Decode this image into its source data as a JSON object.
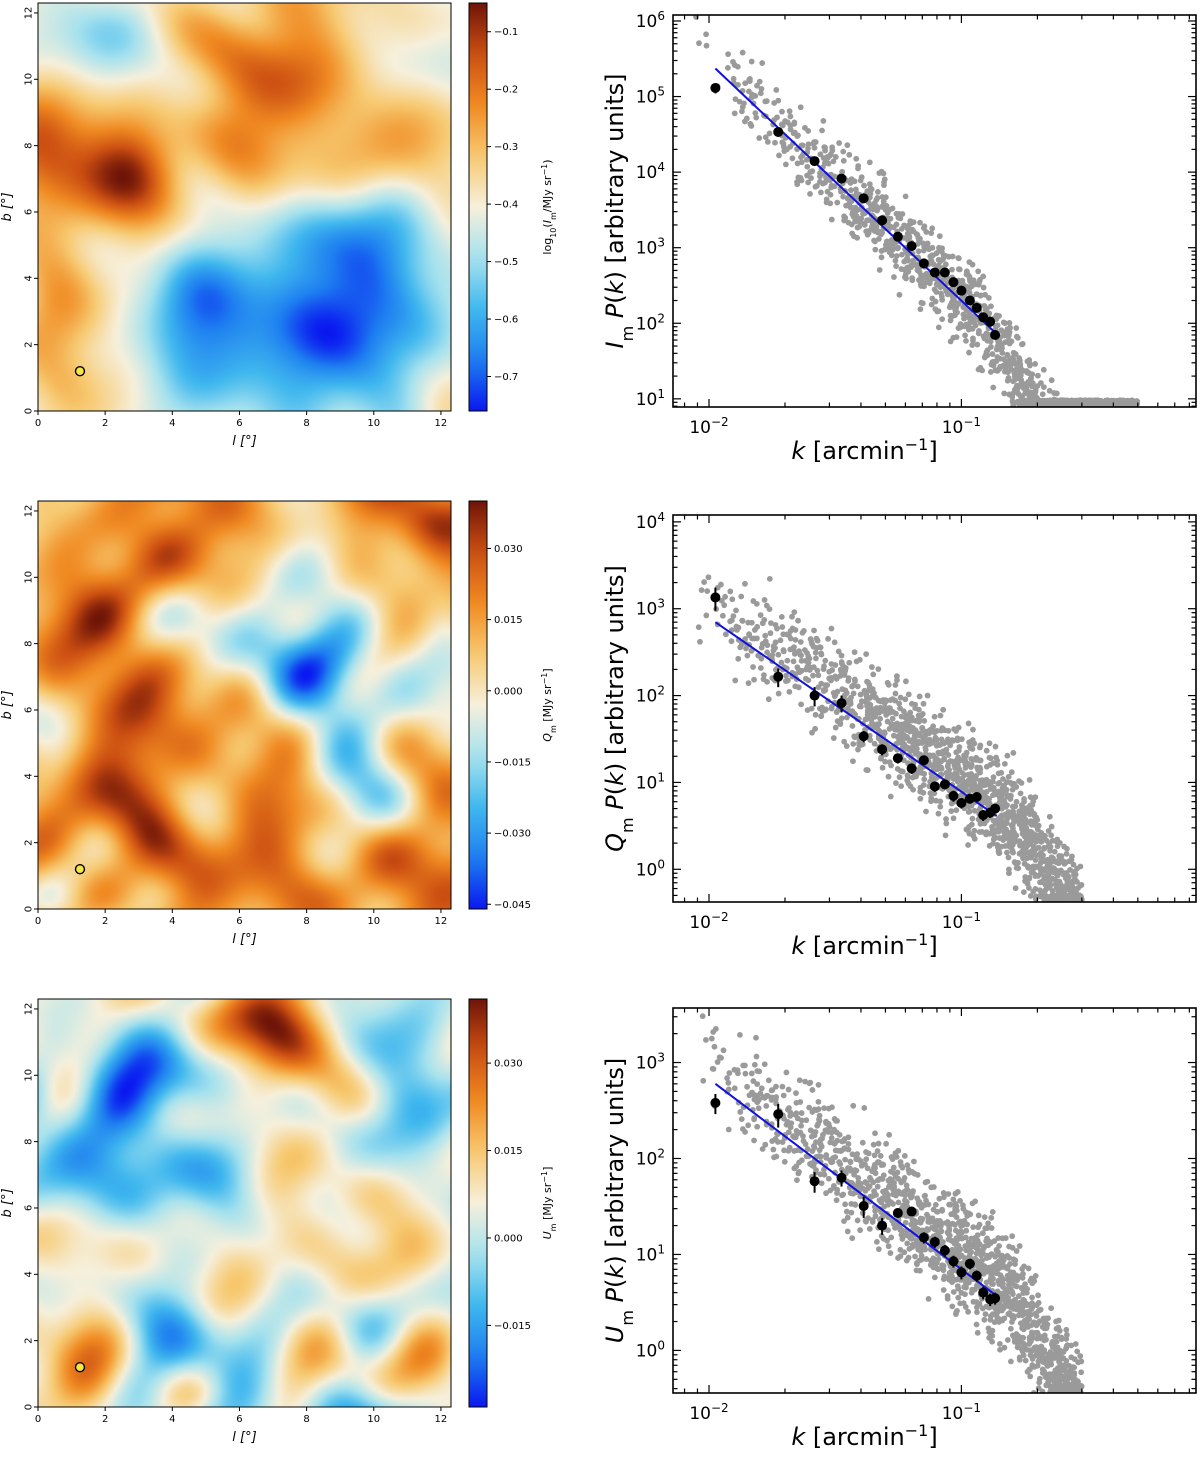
{
  "figure": {
    "maps": [
      {
        "id": "I",
        "title": "",
        "xlabel": "l [°]",
        "ylabel": "b [°]",
        "xticks": [
          0,
          2,
          4,
          6,
          8,
          10,
          12
        ],
        "yticks": [
          0,
          2,
          4,
          6,
          8,
          10,
          12
        ],
        "extent": [
          0,
          12.3,
          0,
          12.3
        ],
        "marker": {
          "l": 1.25,
          "b": 1.2,
          "color": "#f5e642"
        },
        "colorbar": {
          "label": "log10(Im/MJy sr−1)",
          "label_parts": {
            "pre": "log",
            "sub1": "10",
            "mid": "(I",
            "sub2": "m",
            "post": "/MJy sr",
            "sup": "−1",
            "end": ")"
          },
          "min": -0.76,
          "max": -0.05,
          "ticks": [
            -0.7,
            -0.6,
            -0.5,
            -0.4,
            -0.3,
            -0.2,
            -0.1
          ],
          "tick_labels": [
            "−0.7",
            "−0.6",
            "−0.5",
            "−0.4",
            "−0.3",
            "−0.2",
            "−0.1"
          ]
        }
      },
      {
        "id": "Q",
        "title": "",
        "xlabel": "l [°]",
        "ylabel": "b [°]",
        "xticks": [
          0,
          2,
          4,
          6,
          8,
          10,
          12
        ],
        "yticks": [
          0,
          2,
          4,
          6,
          8,
          10,
          12
        ],
        "extent": [
          0,
          12.3,
          0,
          12.3
        ],
        "marker": {
          "l": 1.25,
          "b": 1.2,
          "color": "#f5e642"
        },
        "colorbar": {
          "label": "Qm [MJy sr−1]",
          "label_parts": {
            "pre": "Q",
            "sub1": "m",
            "mid": " [MJy sr",
            "sub2": "",
            "post": "",
            "sup": "−1",
            "end": "]"
          },
          "min": -0.046,
          "max": 0.04,
          "ticks": [
            -0.045,
            -0.03,
            -0.015,
            0.0,
            0.015,
            0.03
          ],
          "tick_labels": [
            "−0.045",
            "−0.030",
            "−0.015",
            "0.000",
            "0.015",
            "0.030"
          ]
        }
      },
      {
        "id": "U",
        "title": "",
        "xlabel": "l [°]",
        "ylabel": "b [°]",
        "xticks": [
          0,
          2,
          4,
          6,
          8,
          10,
          12
        ],
        "yticks": [
          0,
          2,
          4,
          6,
          8,
          10,
          12
        ],
        "extent": [
          0,
          12.3,
          0,
          12.3
        ],
        "marker": {
          "l": 1.25,
          "b": 1.2,
          "color": "#f5e642"
        },
        "colorbar": {
          "label": "Um [MJy sr−1]",
          "label_parts": {
            "pre": "U",
            "sub1": "m",
            "mid": " [MJy sr",
            "sub2": "",
            "post": "",
            "sup": "−1",
            "end": "]"
          },
          "min": -0.029,
          "max": 0.041,
          "ticks": [
            -0.015,
            0.0,
            0.015,
            0.03
          ],
          "tick_labels": [
            "−0.015",
            "0.000",
            "0.015",
            "0.030"
          ]
        }
      }
    ]
  },
  "colors": {
    "fit_line": "#1010e0",
    "binned": "#000000",
    "scatter": "#9a9a9a",
    "colormap": [
      "#0a18f0",
      "#1e7ff0",
      "#40b8ee",
      "#a6e2ee",
      "#f6f0dc",
      "#f7c970",
      "#f08a22",
      "#cc4f12",
      "#6e1408"
    ]
  },
  "chart_data": [
    {
      "type": "scatter",
      "panel": "I",
      "title": "",
      "xlabel": "k [arcmin−1]",
      "ylabel": "Im P(k) [arbitrary units]",
      "ylabel_parts": {
        "sym": "I",
        "sub": "m"
      },
      "xscale": "log",
      "yscale": "log",
      "xlim": [
        0.0072,
        0.85
      ],
      "ylim": [
        7.8,
        1200000
      ],
      "xticks": [
        0.01,
        0.1
      ],
      "xtick_labels": [
        {
          "base": "10",
          "exp": "−2"
        },
        {
          "base": "10",
          "exp": "−1"
        }
      ],
      "yticks": [
        10,
        100,
        1000,
        10000,
        100000,
        1000000
      ],
      "ytick_labels": [
        {
          "base": "10",
          "exp": "1"
        },
        {
          "base": "10",
          "exp": "2"
        },
        {
          "base": "10",
          "exp": "3"
        },
        {
          "base": "10",
          "exp": "4"
        },
        {
          "base": "10",
          "exp": "5"
        },
        {
          "base": "10",
          "exp": "6"
        }
      ],
      "series": [
        {
          "name": "binned",
          "k": [
            0.0106,
            0.0188,
            0.0262,
            0.0335,
            0.041,
            0.0485,
            0.056,
            0.0635,
            0.071,
            0.0785,
            0.086,
            0.093,
            0.1,
            0.108,
            0.115,
            0.122,
            0.13,
            0.136
          ],
          "values": [
            130000,
            34000,
            14000,
            8200,
            4500,
            2300,
            1400,
            1050,
            620,
            470,
            470,
            350,
            270,
            200,
            160,
            120,
            105,
            70
          ],
          "errors": [
            20000,
            3000,
            1000,
            600,
            350,
            150,
            90,
            60,
            40,
            30,
            30,
            25,
            20,
            15,
            12,
            10,
            8,
            6
          ]
        },
        {
          "name": "fit",
          "k": [
            0.0106,
            0.138
          ],
          "values": [
            235000,
            72
          ]
        },
        {
          "name": "modes",
          "k_range": [
            0.0088,
            0.5
          ],
          "amplitude": 235000,
          "k_ref": 0.0106,
          "slope": -3.2,
          "turnover_k": 0.12,
          "floor": 8
        }
      ]
    },
    {
      "type": "scatter",
      "panel": "Q",
      "title": "",
      "xlabel": "k [arcmin−1]",
      "ylabel": "Qm P(k) [arbitrary units]",
      "ylabel_parts": {
        "sym": "Q",
        "sub": "m"
      },
      "xscale": "log",
      "yscale": "log",
      "xlim": [
        0.0072,
        0.85
      ],
      "ylim": [
        0.42,
        12000
      ],
      "xticks": [
        0.01,
        0.1
      ],
      "xtick_labels": [
        {
          "base": "10",
          "exp": "−2"
        },
        {
          "base": "10",
          "exp": "−1"
        }
      ],
      "yticks": [
        1,
        10,
        100,
        1000,
        10000
      ],
      "ytick_labels": [
        {
          "base": "10",
          "exp": "0"
        },
        {
          "base": "10",
          "exp": "1"
        },
        {
          "base": "10",
          "exp": "2"
        },
        {
          "base": "10",
          "exp": "3"
        },
        {
          "base": "10",
          "exp": "4"
        }
      ],
      "series": [
        {
          "name": "binned",
          "k": [
            0.0106,
            0.0188,
            0.0262,
            0.0335,
            0.041,
            0.0485,
            0.056,
            0.0635,
            0.071,
            0.0785,
            0.086,
            0.093,
            0.1,
            0.108,
            0.115,
            0.122,
            0.13,
            0.136
          ],
          "values": [
            1350,
            165,
            100,
            82,
            34,
            24,
            19,
            14.5,
            18,
            9,
            9.5,
            7,
            5.8,
            6.5,
            6.8,
            4.2,
            4.5,
            5
          ],
          "errors": [
            400,
            40,
            25,
            18,
            5,
            3.5,
            2.5,
            2,
            2,
            1.2,
            1.2,
            1,
            0.8,
            0.8,
            0.8,
            0.6,
            0.6,
            0.6
          ]
        },
        {
          "name": "fit",
          "k": [
            0.0106,
            0.138
          ],
          "values": [
            700,
            4.1
          ]
        },
        {
          "name": "modes",
          "k_range": [
            0.0088,
            0.3
          ],
          "amplitude": 700,
          "k_ref": 0.0106,
          "slope": -2.0,
          "turnover_k": 0.15,
          "floor": 0.42
        }
      ]
    },
    {
      "type": "scatter",
      "panel": "U",
      "title": "",
      "xlabel": "k [arcmin−1]",
      "ylabel": "Um P(k) [arbitrary units]",
      "ylabel_parts": {
        "sym": "U",
        "sub": "m"
      },
      "xscale": "log",
      "yscale": "log",
      "xlim": [
        0.0072,
        0.85
      ],
      "ylim": [
        0.36,
        3700
      ],
      "xticks": [
        0.01,
        0.1
      ],
      "xtick_labels": [
        {
          "base": "10",
          "exp": "−2"
        },
        {
          "base": "10",
          "exp": "−1"
        }
      ],
      "yticks": [
        1,
        10,
        100,
        1000
      ],
      "ytick_labels": [
        {
          "base": "10",
          "exp": "0"
        },
        {
          "base": "10",
          "exp": "1"
        },
        {
          "base": "10",
          "exp": "2"
        },
        {
          "base": "10",
          "exp": "3"
        }
      ],
      "series": [
        {
          "name": "binned",
          "k": [
            0.0106,
            0.0188,
            0.0262,
            0.0335,
            0.041,
            0.0485,
            0.056,
            0.0635,
            0.071,
            0.0785,
            0.086,
            0.093,
            0.1,
            0.108,
            0.115,
            0.122,
            0.13,
            0.136
          ],
          "values": [
            380,
            290,
            58,
            63,
            32,
            20,
            27,
            28,
            15,
            13.5,
            11,
            8.5,
            6.5,
            8,
            6,
            4,
            3.4,
            3.5
          ],
          "errors": [
            90,
            80,
            14,
            12,
            8,
            4,
            3,
            3,
            2,
            1.8,
            1.5,
            1.2,
            1,
            1,
            0.8,
            0.6,
            0.5,
            0.5
          ]
        },
        {
          "name": "fit",
          "k": [
            0.0106,
            0.138
          ],
          "values": [
            600,
            3.7
          ]
        },
        {
          "name": "modes",
          "k_range": [
            0.0088,
            0.3
          ],
          "amplitude": 600,
          "k_ref": 0.0106,
          "slope": -2.0,
          "turnover_k": 0.15,
          "floor": 0.36
        }
      ]
    }
  ]
}
